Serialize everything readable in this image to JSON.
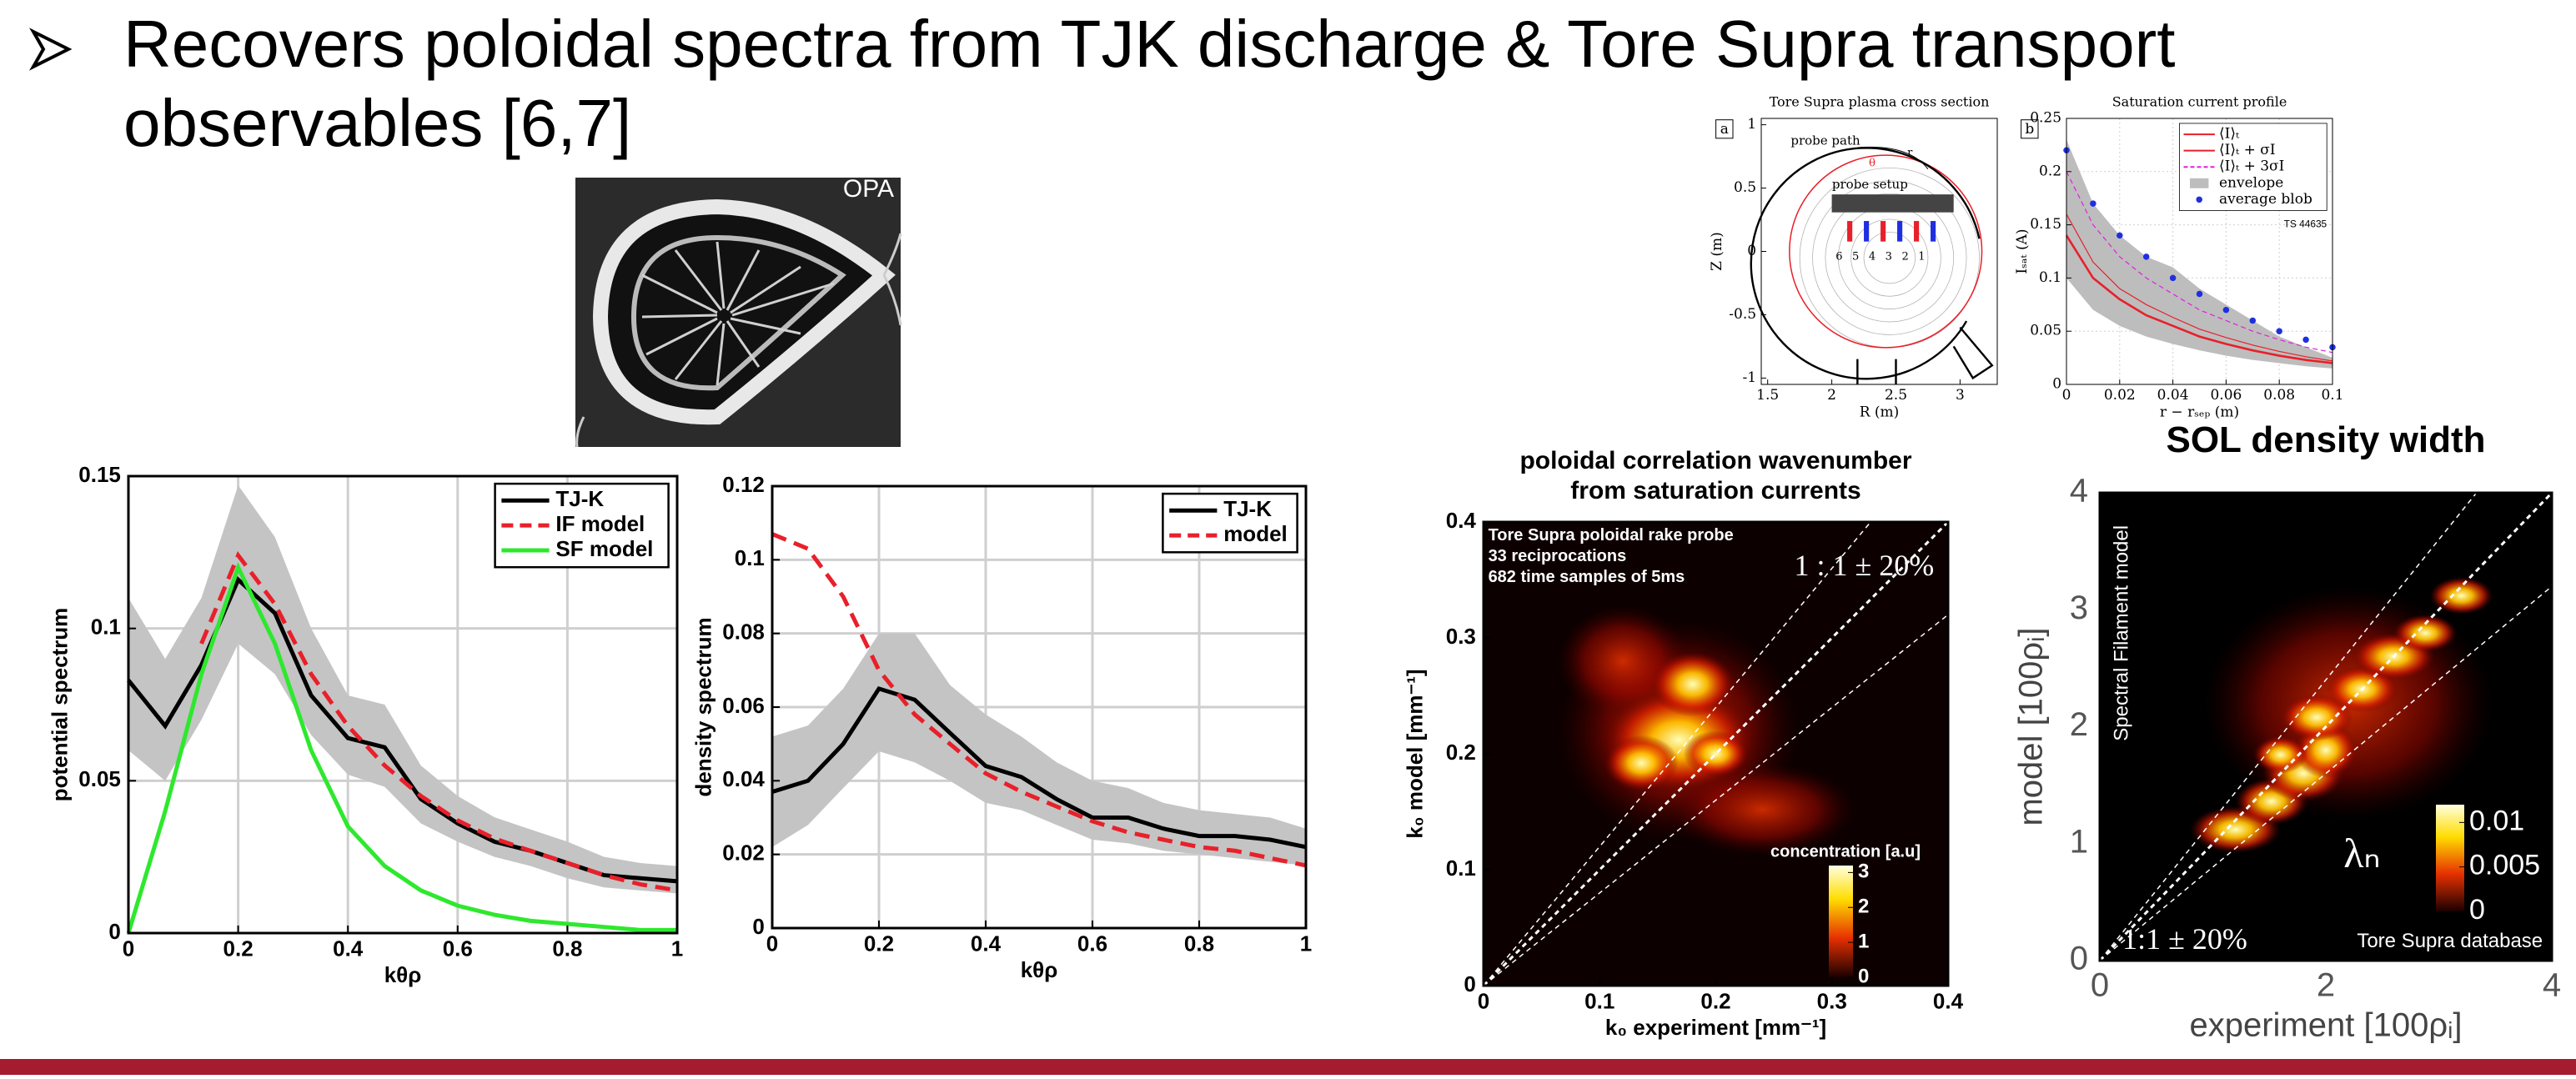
{
  "slide": {
    "bullet": [
      "Recovers poloidal spectra from TJK discharge & Tore Supra transport",
      "observables [6,7]"
    ],
    "photo_label": "OPA"
  },
  "chart_data": [
    {
      "type": "line",
      "y_label": "potential spectrum",
      "x_label": "kθρ",
      "x": [
        0,
        0.067,
        0.133,
        0.2,
        0.267,
        0.333,
        0.4,
        0.467,
        0.533,
        0.6,
        0.667,
        0.733,
        0.8,
        0.867,
        0.933,
        1
      ],
      "xlim": [
        0,
        1
      ],
      "ylim": [
        0,
        0.15
      ],
      "xticks": [
        0,
        0.2,
        0.4,
        0.6,
        0.8,
        1
      ],
      "yticks": [
        0,
        0.05,
        0.1,
        0.15
      ],
      "grid": true,
      "legend": "upper right",
      "band": {
        "color": "#c4c4c4",
        "upper": [
          0.11,
          0.09,
          0.11,
          0.147,
          0.13,
          0.1,
          0.078,
          0.075,
          0.055,
          0.045,
          0.038,
          0.034,
          0.03,
          0.025,
          0.023,
          0.022
        ],
        "lower": [
          0.06,
          0.05,
          0.07,
          0.095,
          0.085,
          0.065,
          0.052,
          0.048,
          0.036,
          0.03,
          0.025,
          0.022,
          0.018,
          0.015,
          0.014,
          0.013
        ]
      },
      "series": [
        {
          "name": "TJ-K",
          "color": "#000000",
          "dash": false,
          "values": [
            0.083,
            0.068,
            0.088,
            0.116,
            0.105,
            0.078,
            0.064,
            0.061,
            0.044,
            0.036,
            0.03,
            0.027,
            0.023,
            0.019,
            0.018,
            0.017
          ]
        },
        {
          "name": "IF model",
          "color": "#e8202a",
          "dash": true,
          "values": [
            null,
            null,
            0.095,
            0.124,
            0.108,
            0.085,
            0.068,
            0.055,
            0.045,
            0.037,
            0.031,
            0.027,
            0.023,
            0.019,
            0.016,
            0.014
          ]
        },
        {
          "name": "SF model",
          "color": "#2ee82e",
          "dash": false,
          "values": [
            0,
            0.04,
            0.085,
            0.12,
            0.095,
            0.06,
            0.035,
            0.022,
            0.014,
            0.009,
            0.006,
            0.004,
            0.003,
            0.002,
            0.001,
            0.001
          ]
        }
      ]
    },
    {
      "type": "line",
      "y_label": "density spectrum",
      "x_label": "kθρ",
      "x": [
        0,
        0.067,
        0.133,
        0.2,
        0.267,
        0.333,
        0.4,
        0.467,
        0.533,
        0.6,
        0.667,
        0.733,
        0.8,
        0.867,
        0.933,
        1
      ],
      "xlim": [
        0,
        1
      ],
      "ylim": [
        0,
        0.12
      ],
      "xticks": [
        0,
        0.2,
        0.4,
        0.6,
        0.8,
        1
      ],
      "yticks": [
        0,
        0.02,
        0.04,
        0.06,
        0.08,
        0.1,
        0.12
      ],
      "grid": true,
      "legend": "upper right",
      "band": {
        "color": "#c4c4c4",
        "upper": [
          0.052,
          0.055,
          0.065,
          0.08,
          0.08,
          0.066,
          0.058,
          0.052,
          0.045,
          0.04,
          0.038,
          0.034,
          0.032,
          0.031,
          0.03,
          0.027
        ],
        "lower": [
          0.022,
          0.028,
          0.038,
          0.048,
          0.045,
          0.04,
          0.034,
          0.032,
          0.028,
          0.024,
          0.023,
          0.021,
          0.02,
          0.019,
          0.018,
          0.017
        ]
      },
      "series": [
        {
          "name": "TJ-K",
          "color": "#000000",
          "dash": false,
          "values": [
            0.037,
            0.04,
            0.05,
            0.065,
            0.062,
            0.053,
            0.044,
            0.041,
            0.035,
            0.03,
            0.03,
            0.027,
            0.025,
            0.025,
            0.024,
            0.022
          ]
        },
        {
          "name": "model",
          "color": "#e8202a",
          "dash": true,
          "values": [
            0.107,
            0.103,
            0.09,
            0.07,
            0.058,
            0.05,
            0.042,
            0.037,
            0.033,
            0.029,
            0.026,
            0.024,
            0.022,
            0.021,
            0.019,
            0.017
          ]
        }
      ]
    },
    {
      "type": "heatmap",
      "title": [
        "poloidal correlation wavenumber",
        "from saturation currents"
      ],
      "x_label": "k₀ experiment [mm⁻¹]",
      "y_label": "k₀ model [mm⁻¹]",
      "xlim": [
        0,
        0.4
      ],
      "ylim": [
        0,
        0.4
      ],
      "xticks": [
        0,
        0.1,
        0.2,
        0.3,
        0.4
      ],
      "yticks": [
        0,
        0.1,
        0.2,
        0.3,
        0.4
      ],
      "grid": false,
      "annotations": [
        "Tore Supra poloidal rake probe",
        "33 reciprocations",
        "682 time samples of 5ms",
        "1 : 1 ± 20%"
      ],
      "colorbar_label": "concentration [a.u]",
      "colorbar_lim": [
        0,
        3.2
      ],
      "colorbar_ticks": [
        0,
        1,
        2,
        3
      ]
    },
    {
      "type": "heatmap",
      "title": "SOL density width",
      "x_label": "experiment [100ρᵢ]",
      "y_label": "model [100ρᵢ]",
      "xlim": [
        0,
        4
      ],
      "ylim": [
        0,
        4
      ],
      "xticks": [
        0,
        2,
        4
      ],
      "yticks": [
        0,
        1,
        2,
        3,
        4
      ],
      "grid": false,
      "annotations": [
        "Spectral Filament model",
        "1:1 ± 20%",
        "Tore Supra database",
        "λₙ"
      ],
      "colorbar_lim": [
        0,
        0.012
      ],
      "colorbar_ticks": [
        0,
        0.005,
        0.01
      ]
    },
    {
      "type": "diagram",
      "panel": "a",
      "title": "Tore Supra plasma cross section",
      "x_label": "R (m)",
      "y_label": "Z (m)",
      "xlim": [
        1.45,
        3.29
      ],
      "ylim": [
        -1.05,
        1.05
      ],
      "xticks": [
        1.5,
        2,
        2.5,
        3
      ],
      "yticks": [
        -1,
        -0.5,
        0,
        0.5,
        1
      ],
      "grid": false,
      "annotations": [
        "probe path",
        "probe setup",
        "r",
        "θ",
        "6",
        "5",
        "4",
        "3",
        "2",
        "1"
      ]
    },
    {
      "type": "line",
      "panel": "b",
      "title": "Saturation current profile",
      "x_label": "r − rₛₑₚ (m)",
      "y_label": "Iₛₐₜ (A)",
      "x": [
        0,
        0.01,
        0.02,
        0.03,
        0.04,
        0.05,
        0.06,
        0.07,
        0.08,
        0.09,
        0.1
      ],
      "xlim": [
        0,
        0.1
      ],
      "ylim": [
        0,
        0.25
      ],
      "xticks": [
        0,
        0.02,
        0.04,
        0.06,
        0.08,
        0.1
      ],
      "yticks": [
        0,
        0.05,
        0.1,
        0.15,
        0.2,
        0.25
      ],
      "grid": true,
      "legend": "upper right",
      "annotations": [
        "TS 44635"
      ],
      "band": {
        "name": "envelope",
        "color": "#bdbdbd",
        "upper": [
          0.23,
          0.17,
          0.14,
          0.12,
          0.11,
          0.09,
          0.075,
          0.06,
          0.045,
          0.035,
          0.025
        ],
        "lower": [
          0.1,
          0.07,
          0.055,
          0.045,
          0.038,
          0.032,
          0.027,
          0.023,
          0.02,
          0.017,
          0.015
        ]
      },
      "series": [
        {
          "name": "⟨I⟩ₜ",
          "color": "#e8202a",
          "dash": false,
          "values": [
            0.14,
            0.1,
            0.08,
            0.065,
            0.055,
            0.045,
            0.038,
            0.032,
            0.027,
            0.023,
            0.02
          ]
        },
        {
          "name": "⟨I⟩ₜ + σI",
          "color": "#e8202a",
          "dash": false,
          "values": [
            0.16,
            0.115,
            0.09,
            0.075,
            0.063,
            0.052,
            0.044,
            0.037,
            0.031,
            0.026,
            0.022
          ]
        },
        {
          "name": "⟨I⟩ₜ + 3σI",
          "color": "#e020e0",
          "dash": true,
          "values": [
            0.2,
            0.15,
            0.12,
            0.1,
            0.085,
            0.07,
            0.06,
            0.05,
            0.042,
            0.035,
            0.03
          ]
        },
        {
          "name": "average blob",
          "color": "#1f2fe0",
          "marker": true,
          "values": [
            0.22,
            0.17,
            0.14,
            0.12,
            0.1,
            0.085,
            0.07,
            0.06,
            0.05,
            0.042,
            0.035
          ]
        }
      ]
    }
  ]
}
